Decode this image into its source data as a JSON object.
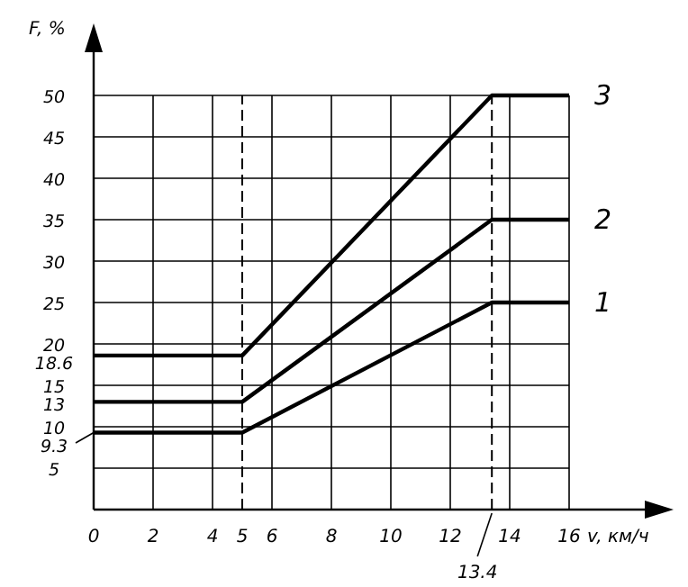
{
  "chart_data": {
    "type": "line",
    "xlabel": "v, км/ч",
    "ylabel": "F, %",
    "x": [
      0,
      5,
      13.4,
      16
    ],
    "xlim": [
      0,
      16
    ],
    "xticks": [
      0,
      2,
      4,
      5,
      6,
      8,
      10,
      12,
      14,
      16
    ],
    "ylim": [
      0,
      50
    ],
    "yticks": [
      5,
      9.3,
      10,
      13,
      15,
      18.6,
      20,
      25,
      30,
      35,
      40,
      45,
      50
    ],
    "series": [
      {
        "name": "1",
        "color": "#000000",
        "values": [
          9.3,
          9.3,
          25,
          25
        ]
      },
      {
        "name": "2",
        "color": "#000000",
        "values": [
          13,
          13,
          35,
          35
        ]
      },
      {
        "name": "3",
        "color": "#000000",
        "values": [
          18.6,
          18.6,
          50,
          50
        ]
      }
    ],
    "ref_lines": [
      {
        "axis": "x",
        "value": 5,
        "line_style": "dashed"
      },
      {
        "axis": "x",
        "value": 13.4,
        "label": "13.4",
        "line_style": "dashed"
      }
    ],
    "grid": true,
    "marker": "none",
    "line_style": "solid"
  }
}
